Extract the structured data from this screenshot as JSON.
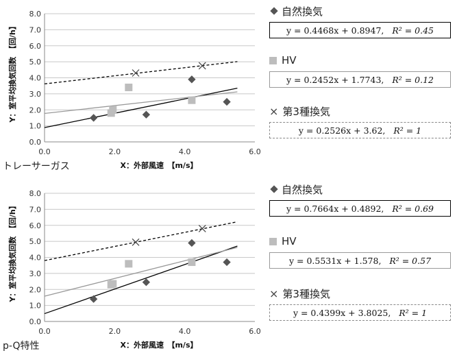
{
  "chart_data": [
    {
      "type": "scatter",
      "caption": "トレーサーガス",
      "xlabel": "X：外部風速　【m/s】",
      "ylabel": "Y：室平均換気回数　【回/h】",
      "xlim": [
        0,
        6
      ],
      "ylim": [
        0,
        8
      ],
      "x_ticks": [
        "0.0",
        "2.0",
        "4.0",
        "6.0"
      ],
      "y_ticks": [
        "0.0",
        "1.0",
        "2.0",
        "3.0",
        "4.0",
        "5.0",
        "6.0",
        "7.0",
        "8.0"
      ],
      "grid": "horizontal",
      "series": [
        {
          "name": "自然換気",
          "marker": "diamond",
          "color": "#555555",
          "points": [
            [
              1.4,
              1.5
            ],
            [
              2.9,
              1.7
            ],
            [
              4.2,
              3.9
            ],
            [
              5.2,
              2.5
            ]
          ],
          "fit": {
            "slope": 0.4468,
            "intercept": 0.8947,
            "line": "solid",
            "color": "#000000",
            "equation": "y = 0.4468x + 0.8947,",
            "r2": "R² = 0.45"
          }
        },
        {
          "name": "HV",
          "marker": "square",
          "color": "#bdbdbd",
          "points": [
            [
              1.9,
              1.8
            ],
            [
              1.95,
              2.0
            ],
            [
              2.4,
              3.4
            ],
            [
              4.2,
              2.6
            ]
          ],
          "fit": {
            "slope": 0.2452,
            "intercept": 1.7743,
            "line": "solid",
            "color": "#999999",
            "equation": "y = 0.2452x + 1.7743,",
            "r2": "R² = 0.12"
          }
        },
        {
          "name": "第3種換気",
          "marker": "cross",
          "color": "#444444",
          "points": [
            [
              2.6,
              4.3
            ],
            [
              4.5,
              4.75
            ]
          ],
          "fit": {
            "slope": 0.2526,
            "intercept": 3.62,
            "line": "dashed",
            "color": "#000000",
            "equation": "y = 0.2526x + 3.62,",
            "r2": "R² = 1"
          }
        }
      ]
    },
    {
      "type": "scatter",
      "caption": "p-Q特性",
      "xlabel": "X：外部風速　【m/s】",
      "ylabel": "Y：室平均換気回数　【回/h】",
      "xlim": [
        0,
        6
      ],
      "ylim": [
        0,
        8
      ],
      "x_ticks": [
        "0.0",
        "2.0",
        "4.0",
        "6.0"
      ],
      "y_ticks": [
        "0.0",
        "1.0",
        "2.0",
        "3.0",
        "4.0",
        "5.0",
        "6.0",
        "7.0",
        "8.0"
      ],
      "grid": "horizontal",
      "series": [
        {
          "name": "自然換気",
          "marker": "diamond",
          "color": "#555555",
          "points": [
            [
              1.4,
              1.4
            ],
            [
              2.9,
              2.45
            ],
            [
              4.2,
              4.9
            ],
            [
              5.2,
              3.7
            ]
          ],
          "fit": {
            "slope": 0.7664,
            "intercept": 0.4892,
            "line": "solid",
            "color": "#000000",
            "equation": "y = 0.7664x + 0.4892,",
            "r2": "R² = 0.69"
          }
        },
        {
          "name": "HV",
          "marker": "square",
          "color": "#bdbdbd",
          "points": [
            [
              1.9,
              2.3
            ],
            [
              1.95,
              2.35
            ],
            [
              2.4,
              3.6
            ],
            [
              4.2,
              3.7
            ]
          ],
          "fit": {
            "slope": 0.5531,
            "intercept": 1.578,
            "line": "solid",
            "color": "#999999",
            "equation": "y = 0.5531x + 1.578,",
            "r2": "R² = 0.57"
          }
        },
        {
          "name": "第3種換気",
          "marker": "cross",
          "color": "#444444",
          "points": [
            [
              2.6,
              4.95
            ],
            [
              4.5,
              5.8
            ]
          ],
          "fit": {
            "slope": 0.4399,
            "intercept": 3.8025,
            "line": "dashed",
            "color": "#000000",
            "equation": "y = 0.4399x + 3.8025,",
            "r2": "R² = 1"
          }
        }
      ]
    }
  ],
  "legend": {
    "diamond_symbol": "◆",
    "cross_symbol": "×"
  }
}
